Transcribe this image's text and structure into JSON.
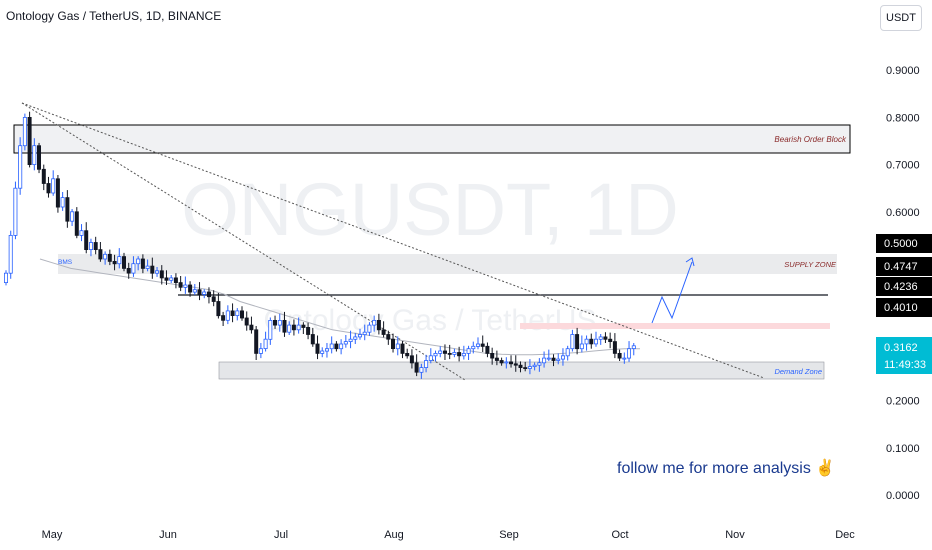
{
  "header": {
    "symbol_title": "Ontology Gas / TetherUS, 1D, BINANCE",
    "unit_label": "USDT"
  },
  "watermark": {
    "main": "ONGUSDT, 1D",
    "sub": "Ontology Gas / TetherUS"
  },
  "annotations": {
    "bearish_order_block": "Bearish Order Block",
    "supply_zone": "SUPPLY ZONE",
    "demand_zone": "Demand Zone",
    "bms": "BMS",
    "follow_text": "follow me for more analysis",
    "follow_icon": "victory-hand-icon"
  },
  "colors": {
    "bull": "#26a69a",
    "bear": "#ef5350",
    "candle_dark": "#131722",
    "candle_blue": "#2962ff",
    "ma_line": "#b2b5be",
    "price_label_bg": "#00bcd4",
    "level_label_bg": "#000000",
    "projection": "#2962ff",
    "follow_text": "#1a3a8f"
  },
  "chart_data": {
    "type": "candlestick",
    "title": "Ontology Gas / TetherUS, 1D, BINANCE",
    "y_axis": {
      "ticks": [
        "0.9000",
        "0.8000",
        "0.7000",
        "0.6000",
        "0.2000",
        "0.1000",
        "0.0000"
      ],
      "ylim": [
        -0.02,
        0.97
      ]
    },
    "x_axis": {
      "ticks": [
        "May",
        "Jun",
        "Jul",
        "Aug",
        "Sep",
        "Oct",
        "Nov",
        "Dec"
      ]
    },
    "level_labels": [
      "0.5000",
      "0.4747",
      "0.4236",
      "0.4010"
    ],
    "current_price": "0.3162",
    "countdown": "11:49:33",
    "zones": [
      {
        "name": "Bearish Order Block",
        "y_low": 0.72,
        "y_high": 0.78
      },
      {
        "name": "SUPPLY ZONE",
        "y_low": 0.46,
        "y_high": 0.5
      },
      {
        "name": "Demand Zone",
        "y_low": 0.25,
        "y_high": 0.285
      }
    ],
    "horizontal_line": 0.42,
    "red_band": [
      0.345,
      0.355
    ],
    "series_close": [
      0.47,
      0.55,
      0.65,
      0.74,
      0.8,
      0.7,
      0.74,
      0.69,
      0.66,
      0.64,
      0.67,
      0.61,
      0.63,
      0.58,
      0.6,
      0.55,
      0.56,
      0.52,
      0.535,
      0.52,
      0.5,
      0.51,
      0.495,
      0.49,
      0.505,
      0.48,
      0.47,
      0.49,
      0.5,
      0.48,
      0.485,
      0.47,
      0.475,
      0.46,
      0.455,
      0.46,
      0.45,
      0.44,
      0.445,
      0.43,
      0.435,
      0.425,
      0.43,
      0.42,
      0.41,
      0.38,
      0.37,
      0.39,
      0.38,
      0.39,
      0.375,
      0.36,
      0.35,
      0.3,
      0.31,
      0.33,
      0.37,
      0.36,
      0.37,
      0.345,
      0.36,
      0.35,
      0.36,
      0.355,
      0.34,
      0.32,
      0.3,
      0.305,
      0.31,
      0.32,
      0.31,
      0.32,
      0.325,
      0.33,
      0.335,
      0.34,
      0.345,
      0.36,
      0.37,
      0.35,
      0.34,
      0.33,
      0.31,
      0.32,
      0.3,
      0.295,
      0.28,
      0.26,
      0.27,
      0.285,
      0.295,
      0.3,
      0.305,
      0.3,
      0.298,
      0.302,
      0.295,
      0.3,
      0.31,
      0.315,
      0.32,
      0.315,
      0.3,
      0.29,
      0.285,
      0.28,
      0.282,
      0.278,
      0.275,
      0.27,
      0.268,
      0.272,
      0.275,
      0.28,
      0.29,
      0.29,
      0.285,
      0.288,
      0.295,
      0.31,
      0.34,
      0.31,
      0.32,
      0.33,
      0.32,
      0.33,
      0.335,
      0.33,
      0.325,
      0.3,
      0.29,
      0.29,
      0.31,
      0.316
    ],
    "ma_values": [
      0.5,
      0.49,
      0.48,
      0.475,
      0.47,
      0.465,
      0.46,
      0.455,
      0.45,
      0.445,
      0.44,
      0.435,
      0.425,
      0.41,
      0.4,
      0.39,
      0.38,
      0.37,
      0.36,
      0.35,
      0.345,
      0.34,
      0.335,
      0.33,
      0.325,
      0.32,
      0.315,
      0.31,
      0.305,
      0.3,
      0.298,
      0.297,
      0.297,
      0.298,
      0.3,
      0.302,
      0.305,
      0.308,
      0.31,
      0.31
    ],
    "projection": [
      [
        0.38
      ],
      [
        0.44
      ],
      [
        0.36
      ],
      [
        0.52
      ]
    ]
  }
}
